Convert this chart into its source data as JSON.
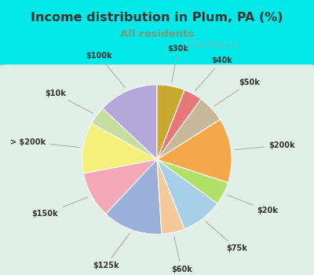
{
  "title": "Income distribution in Plum, PA (%)",
  "subtitle": "All residents",
  "watermark": "Ⓣ City-Data.com",
  "labels": [
    "$100k",
    "$10k",
    "> $200k",
    "$150k",
    "$125k",
    "$60k",
    "$75k",
    "$20k",
    "$200k",
    "$50k",
    "$40k",
    "$30k"
  ],
  "values": [
    13,
    4,
    11,
    10,
    13,
    5,
    9,
    5,
    14,
    6,
    4,
    6
  ],
  "colors": [
    "#b3a8d9",
    "#c5dea0",
    "#f5f07a",
    "#f4a8b8",
    "#9ab0d9",
    "#f5c89a",
    "#a8cfe8",
    "#b0e068",
    "#f5a84a",
    "#c8b89a",
    "#e87878",
    "#c8a830"
  ],
  "background_cyan": "#00e8e8",
  "background_inner": "#e0f0e8",
  "title_color": "#333333",
  "subtitle_color": "#7a9a7a",
  "label_color": "#333333",
  "startangle": 90,
  "label_distance": 1.28
}
